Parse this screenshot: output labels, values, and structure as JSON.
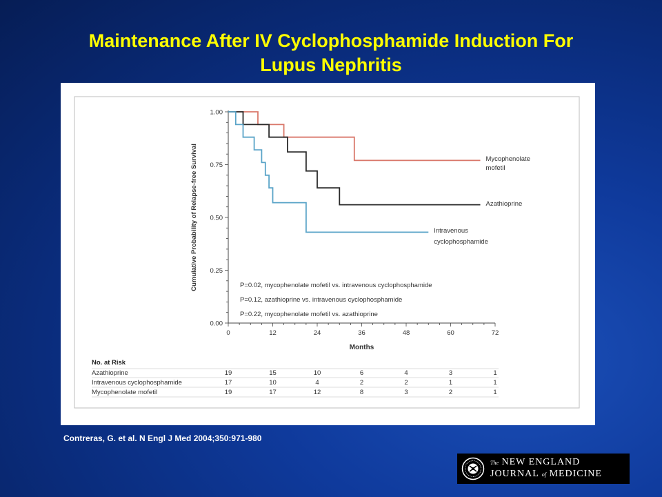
{
  "slide": {
    "title_line1": "Maintenance After IV Cyclophosphamide Induction For",
    "title_line2": "Lupus Nephritis",
    "citation": "Contreras, G. et al. N Engl J Med 2004;350:971-980"
  },
  "logo": {
    "line1_prefix": "The",
    "line1_main": "NEW ENGLAND",
    "line2_a": "JOURNAL",
    "line2_of": "of",
    "line2_b": "MEDICINE"
  },
  "colors": {
    "background": "#0a2c7c",
    "title": "#ffff00",
    "mycophenolate": "#d9776a",
    "azathioprine": "#2a2a2a",
    "cyclophosphamide": "#5aa4c8"
  },
  "chart_data": {
    "type": "line",
    "step": true,
    "ylabel": "Cumulative Probability of Relapse-free Survival",
    "xlabel": "Months",
    "xlim": [
      0,
      72
    ],
    "ylim": [
      0,
      1
    ],
    "x_ticks": [
      0,
      12,
      24,
      36,
      48,
      60,
      72
    ],
    "y_ticks": [
      "0.00",
      "0.25",
      "0.50",
      "0.75",
      "1.00"
    ],
    "series": [
      {
        "name_lines": [
          "Mycophenolate",
          "mofetil"
        ],
        "color": "#d9776a",
        "points": [
          [
            0,
            1.0
          ],
          [
            8,
            1.0
          ],
          [
            8,
            0.94
          ],
          [
            15,
            0.94
          ],
          [
            15,
            0.88
          ],
          [
            34,
            0.88
          ],
          [
            34,
            0.77
          ],
          [
            68,
            0.77
          ]
        ]
      },
      {
        "name_lines": [
          "Azathioprine"
        ],
        "color": "#2a2a2a",
        "points": [
          [
            0,
            1.0
          ],
          [
            4,
            1.0
          ],
          [
            4,
            0.94
          ],
          [
            11,
            0.94
          ],
          [
            11,
            0.88
          ],
          [
            16,
            0.88
          ],
          [
            16,
            0.81
          ],
          [
            21,
            0.81
          ],
          [
            21,
            0.72
          ],
          [
            24,
            0.72
          ],
          [
            24,
            0.64
          ],
          [
            30,
            0.64
          ],
          [
            30,
            0.56
          ],
          [
            68,
            0.56
          ]
        ]
      },
      {
        "name_lines": [
          "Intravenous",
          "cyclophosphamide"
        ],
        "color": "#5aa4c8",
        "points": [
          [
            0,
            1.0
          ],
          [
            2,
            1.0
          ],
          [
            2,
            0.94
          ],
          [
            4,
            0.94
          ],
          [
            4,
            0.88
          ],
          [
            7,
            0.88
          ],
          [
            7,
            0.82
          ],
          [
            9,
            0.82
          ],
          [
            9,
            0.76
          ],
          [
            10,
            0.76
          ],
          [
            10,
            0.7
          ],
          [
            11,
            0.7
          ],
          [
            11,
            0.64
          ],
          [
            12,
            0.64
          ],
          [
            12,
            0.57
          ],
          [
            21,
            0.57
          ],
          [
            21,
            0.43
          ],
          [
            54,
            0.43
          ]
        ]
      }
    ],
    "annotations": [
      "P=0.02, mycophenolate mofetil vs. intravenous cyclophosphamide",
      "P=0.12, azathioprine vs. intravenous cyclophosphamide",
      "P=0.22, mycophenolate mofetil vs. azathioprine"
    ],
    "risk_table": {
      "title": "No. at Risk",
      "rows": [
        {
          "label": "Azathioprine",
          "values": [
            "19",
            "15",
            "10",
            "6",
            "4",
            "3",
            "1"
          ]
        },
        {
          "label": "Intravenous cyclophosphamide",
          "values": [
            "17",
            "10",
            "4",
            "2",
            "2",
            "1",
            "1"
          ]
        },
        {
          "label": "Mycophenolate mofetil",
          "values": [
            "19",
            "17",
            "12",
            "8",
            "3",
            "2",
            "1"
          ]
        }
      ]
    }
  }
}
